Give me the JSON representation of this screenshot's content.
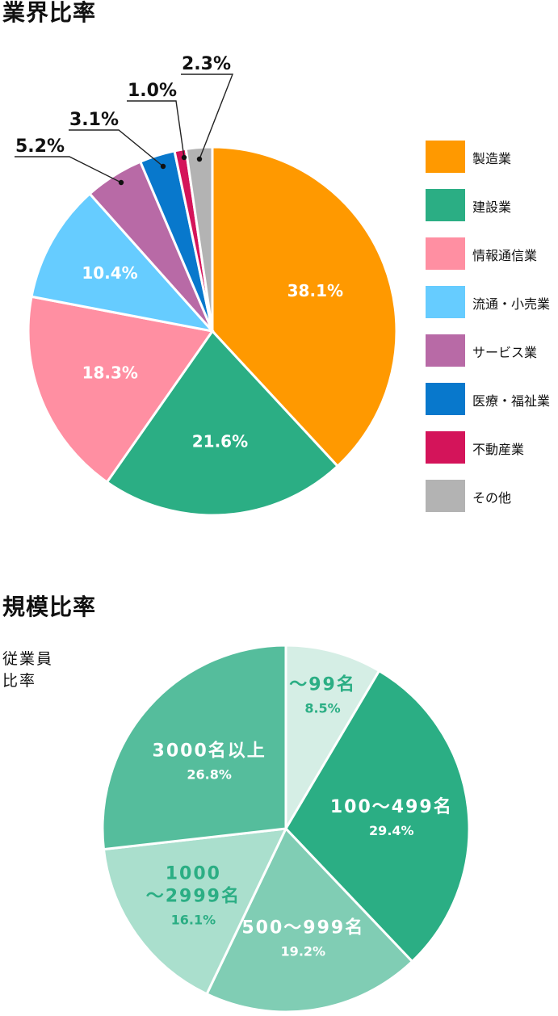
{
  "chart_data": [
    {
      "type": "pie",
      "title": "業界比率",
      "legend_position": "right",
      "slices": [
        {
          "label": "製造業",
          "value": 38.1,
          "value_label": "38.1%",
          "color": "#FF9900"
        },
        {
          "label": "建設業",
          "value": 21.6,
          "value_label": "21.6%",
          "color": "#2BAE84"
        },
        {
          "label": "情報通信業",
          "value": 18.3,
          "value_label": "18.3%",
          "color": "#FF8FA2"
        },
        {
          "label": "流通・小売業",
          "value": 10.4,
          "value_label": "10.4%",
          "color": "#66CCFF"
        },
        {
          "label": "サービス業",
          "value": 5.2,
          "value_label": "5.2%",
          "color": "#B86AA6"
        },
        {
          "label": "医療・福祉業",
          "value": 3.1,
          "value_label": "3.1%",
          "color": "#0878CC"
        },
        {
          "label": "不動産業",
          "value": 1.0,
          "value_label": "1.0%",
          "color": "#D4145A"
        },
        {
          "label": "その他",
          "value": 2.3,
          "value_label": "2.3%",
          "color": "#B3B3B3"
        }
      ]
    },
    {
      "type": "pie",
      "title": "規模比率",
      "subtitle_lines": [
        "従業員",
        "比率"
      ],
      "slices": [
        {
          "label_lines": [
            "～99名"
          ],
          "value": 8.5,
          "value_label": "8.5%",
          "color": "#D5EEE5",
          "text_color": "#2BAE84"
        },
        {
          "label_lines": [
            "100～499名"
          ],
          "value": 29.4,
          "value_label": "29.4%",
          "color": "#2BAE84",
          "text_color": "#FFFFFF"
        },
        {
          "label_lines": [
            "500～999名"
          ],
          "value": 19.2,
          "value_label": "19.2%",
          "color": "#80CDB4",
          "text_color": "#FFFFFF"
        },
        {
          "label_lines": [
            "1000",
            "～2999名"
          ],
          "value": 16.1,
          "value_label": "16.1%",
          "color": "#AADFCD",
          "text_color": "#2BAE84"
        },
        {
          "label_lines": [
            "3000名以上"
          ],
          "value": 26.8,
          "value_label": "26.8%",
          "color": "#55BD9C",
          "text_color": "#FFFFFF"
        }
      ]
    }
  ]
}
